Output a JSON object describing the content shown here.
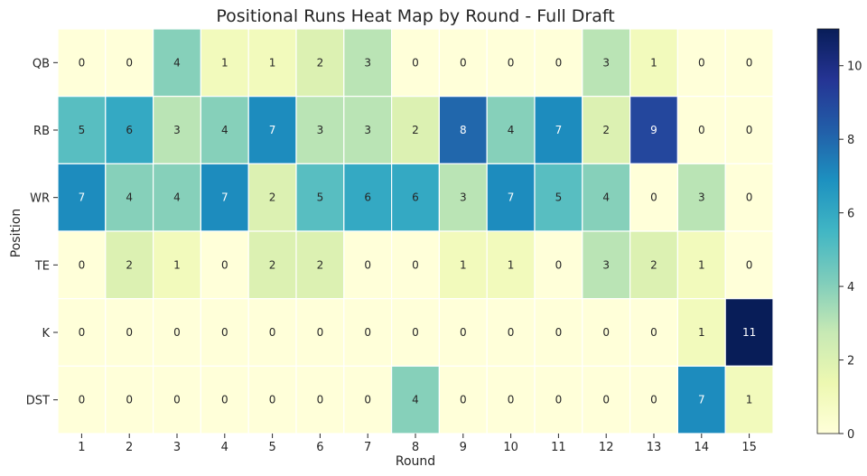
{
  "chart_data": {
    "type": "heatmap",
    "title": "Positional Runs Heat Map by Round - Full Draft",
    "xlabel": "Round",
    "ylabel": "Position",
    "x_categories": [
      "1",
      "2",
      "3",
      "4",
      "5",
      "6",
      "7",
      "8",
      "9",
      "10",
      "11",
      "12",
      "13",
      "14",
      "15"
    ],
    "y_categories": [
      "QB",
      "RB",
      "WR",
      "TE",
      "K",
      "DST"
    ],
    "values": [
      [
        0,
        0,
        4,
        1,
        1,
        2,
        3,
        0,
        0,
        0,
        0,
        3,
        1,
        0,
        0
      ],
      [
        5,
        6,
        3,
        4,
        7,
        3,
        3,
        2,
        8,
        4,
        7,
        2,
        9,
        0,
        0
      ],
      [
        7,
        4,
        4,
        7,
        2,
        5,
        6,
        6,
        3,
        7,
        5,
        4,
        0,
        3,
        0
      ],
      [
        0,
        2,
        1,
        0,
        2,
        2,
        0,
        0,
        1,
        1,
        0,
        3,
        2,
        1,
        0
      ],
      [
        0,
        0,
        0,
        0,
        0,
        0,
        0,
        0,
        0,
        0,
        0,
        0,
        0,
        1,
        11
      ],
      [
        0,
        0,
        0,
        0,
        0,
        0,
        0,
        4,
        0,
        0,
        0,
        0,
        0,
        7,
        1
      ]
    ],
    "colorbar": {
      "colormap": "YlGnBu",
      "range": [
        0,
        11
      ],
      "ticks": [
        0,
        2,
        4,
        6,
        8,
        10
      ]
    },
    "grid": false
  }
}
